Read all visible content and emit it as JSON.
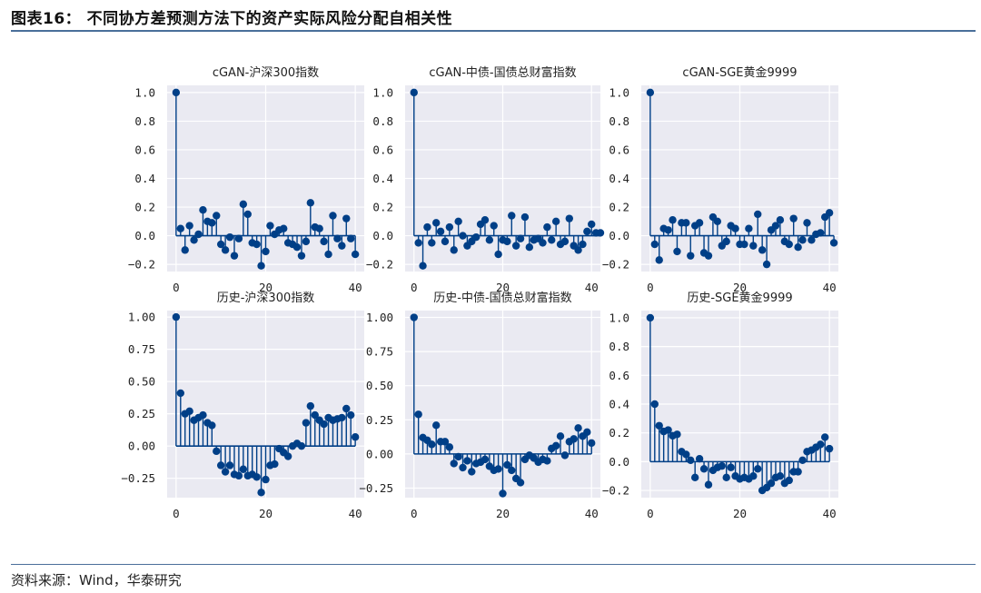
{
  "figure_title": "图表16：  不同协方差预测方法下的资产实际风险分配自相关性",
  "source": "资料来源：Wind，华泰研究",
  "colors": {
    "stem": "#003f87",
    "plot_bg": "#eaeaf2",
    "grid": "#ffffff",
    "rule": "#4a6f9a"
  },
  "chart_data": [
    {
      "type": "stem",
      "title": "cGAN-沪深300指数",
      "xlim": [
        -2,
        42
      ],
      "ylim": [
        -0.25,
        1.05
      ],
      "xticks": [
        0,
        20,
        40
      ],
      "xtick_labels": [
        "0",
        "20",
        "40"
      ],
      "yticks": [
        -0.2,
        0,
        0.2,
        0.4,
        0.6,
        0.8,
        1.0
      ],
      "ytick_labels": [
        "−0.2",
        "0.0",
        "0.2",
        "0.4",
        "0.6",
        "0.8",
        "1.0"
      ],
      "values": [
        1.0,
        0.05,
        -0.1,
        0.07,
        -0.03,
        0.01,
        0.18,
        0.1,
        0.09,
        0.14,
        -0.06,
        -0.1,
        -0.01,
        -0.14,
        -0.02,
        0.22,
        0.15,
        -0.05,
        -0.06,
        -0.21,
        -0.11,
        0.07,
        0.01,
        0.04,
        0.05,
        -0.05,
        -0.06,
        -0.08,
        -0.14,
        -0.04,
        0.23,
        0.06,
        0.05,
        -0.04,
        -0.13,
        0.14,
        -0.02,
        -0.07,
        0.12,
        -0.02,
        -0.13
      ]
    },
    {
      "type": "stem",
      "title": "cGAN-中债-国债总财富指数",
      "xlim": [
        -2,
        42
      ],
      "ylim": [
        -0.25,
        1.05
      ],
      "xticks": [
        0,
        20,
        40
      ],
      "xtick_labels": [
        "0",
        "20",
        "40"
      ],
      "yticks": [
        -0.2,
        0,
        0.2,
        0.4,
        0.6,
        0.8,
        1.0
      ],
      "ytick_labels": [
        "−0.2",
        "0.0",
        "0.2",
        "0.4",
        "0.6",
        "0.8",
        "1.0"
      ],
      "values": [
        1.0,
        -0.05,
        -0.21,
        0.06,
        -0.05,
        0.09,
        0.03,
        -0.04,
        0.06,
        -0.1,
        0.1,
        0.0,
        -0.07,
        -0.04,
        -0.01,
        0.08,
        0.11,
        -0.03,
        0.07,
        -0.13,
        -0.03,
        -0.04,
        0.14,
        -0.07,
        -0.02,
        0.13,
        -0.08,
        -0.03,
        -0.02,
        -0.05,
        0.06,
        -0.03,
        0.1,
        -0.06,
        -0.04,
        0.12,
        -0.07,
        -0.1,
        -0.06,
        0.03,
        0.08,
        0.02,
        0.02
      ]
    },
    {
      "type": "stem",
      "title": "cGAN-SGE黄金9999",
      "xlim": [
        -2,
        42
      ],
      "ylim": [
        -0.25,
        1.05
      ],
      "xticks": [
        0,
        20,
        40
      ],
      "xtick_labels": [
        "0",
        "20",
        "40"
      ],
      "yticks": [
        -0.2,
        0,
        0.2,
        0.4,
        0.6,
        0.8,
        1.0
      ],
      "ytick_labels": [
        "−0.2",
        "0.0",
        "0.2",
        "0.4",
        "0.6",
        "0.8",
        "1.0"
      ],
      "values": [
        1.0,
        -0.06,
        -0.17,
        0.05,
        0.04,
        0.11,
        -0.11,
        0.09,
        0.09,
        -0.14,
        0.07,
        0.09,
        -0.12,
        -0.14,
        0.13,
        0.1,
        -0.07,
        -0.04,
        0.07,
        0.05,
        -0.06,
        -0.06,
        0.05,
        -0.07,
        0.15,
        -0.1,
        -0.2,
        0.04,
        0.07,
        0.11,
        -0.04,
        -0.06,
        0.12,
        -0.08,
        -0.03,
        0.09,
        -0.03,
        0.01,
        0.02,
        0.13,
        0.16,
        -0.05
      ]
    },
    {
      "type": "stem",
      "title": "历史-沪深300指数",
      "xlim": [
        -2,
        42
      ],
      "ylim": [
        -0.4,
        1.05
      ],
      "xticks": [
        0,
        20,
        40
      ],
      "xtick_labels": [
        "0",
        "20",
        "40"
      ],
      "yticks": [
        -0.25,
        0,
        0.25,
        0.5,
        0.75,
        1.0
      ],
      "ytick_labels": [
        "−0.25",
        "0.00",
        "0.25",
        "0.50",
        "0.75",
        "1.00"
      ],
      "values": [
        1.0,
        0.41,
        0.25,
        0.27,
        0.2,
        0.22,
        0.24,
        0.18,
        0.16,
        -0.04,
        -0.15,
        -0.2,
        -0.15,
        -0.22,
        -0.23,
        -0.18,
        -0.23,
        -0.22,
        -0.24,
        -0.36,
        -0.26,
        -0.15,
        -0.14,
        -0.02,
        -0.05,
        -0.08,
        0.0,
        0.02,
        0.0,
        0.18,
        0.31,
        0.24,
        0.2,
        0.17,
        0.22,
        0.2,
        0.21,
        0.22,
        0.29,
        0.24,
        0.07
      ]
    },
    {
      "type": "stem",
      "title": "历史-中债-国债总财富指数",
      "xlim": [
        -2,
        42
      ],
      "ylim": [
        -0.32,
        1.05
      ],
      "xticks": [
        0,
        20,
        40
      ],
      "xtick_labels": [
        "0",
        "20",
        "40"
      ],
      "yticks": [
        -0.25,
        0,
        0.25,
        0.5,
        0.75,
        1.0
      ],
      "ytick_labels": [
        "−0.25",
        "0.00",
        "0.25",
        "0.50",
        "0.75",
        "1.00"
      ],
      "values": [
        1.0,
        0.29,
        0.12,
        0.1,
        0.07,
        0.21,
        0.09,
        0.09,
        0.05,
        -0.07,
        -0.02,
        -0.1,
        -0.05,
        -0.13,
        -0.07,
        -0.06,
        -0.04,
        -0.09,
        -0.12,
        -0.11,
        -0.29,
        -0.08,
        -0.12,
        -0.18,
        -0.21,
        -0.04,
        -0.01,
        -0.03,
        -0.06,
        -0.04,
        -0.05,
        0.04,
        0.06,
        0.13,
        -0.01,
        0.09,
        0.11,
        0.19,
        0.13,
        0.16,
        0.08
      ]
    },
    {
      "type": "stem",
      "title": "历史-SGE黄金9999",
      "xlim": [
        -2,
        42
      ],
      "ylim": [
        -0.25,
        1.05
      ],
      "xticks": [
        0,
        20,
        40
      ],
      "xtick_labels": [
        "0",
        "20",
        "40"
      ],
      "yticks": [
        -0.2,
        0,
        0.2,
        0.4,
        0.6,
        0.8,
        1.0
      ],
      "ytick_labels": [
        "−0.2",
        "0.0",
        "0.2",
        "0.4",
        "0.6",
        "0.8",
        "1.0"
      ],
      "values": [
        1.0,
        0.4,
        0.25,
        0.21,
        0.22,
        0.18,
        0.19,
        0.07,
        0.05,
        0.01,
        -0.11,
        0.02,
        -0.05,
        -0.16,
        -0.06,
        -0.04,
        -0.03,
        -0.11,
        -0.04,
        -0.1,
        -0.12,
        -0.11,
        -0.12,
        -0.1,
        -0.05,
        -0.2,
        -0.18,
        -0.15,
        -0.11,
        -0.1,
        -0.15,
        -0.13,
        -0.07,
        -0.07,
        0.01,
        0.07,
        0.08,
        0.1,
        0.12,
        0.17,
        0.09
      ]
    }
  ]
}
